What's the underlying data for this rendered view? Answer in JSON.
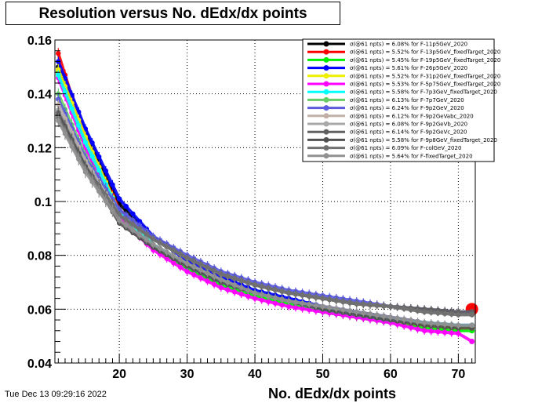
{
  "title": "Resolution versus No. dEdx/dx points",
  "footer_date": "Tue Dec 13 09:29:16 2022",
  "chart_data": {
    "type": "scatter",
    "title": "Resolution versus No. dEdx/dx points",
    "xlabel": "No. dEdx/dx points",
    "ylabel": "",
    "xlim": [
      10.5,
      72.5
    ],
    "ylim": [
      0.04,
      0.16
    ],
    "xticks": [
      20,
      30,
      40,
      50,
      60,
      70
    ],
    "yticks": [
      0.04,
      0.06,
      0.08,
      0.1,
      0.12,
      0.14,
      0.16
    ],
    "ytick_labels": [
      "0.04",
      "0.06",
      "0.08",
      "0.1",
      "0.12",
      "0.14",
      "0.16"
    ],
    "grid": true,
    "legend_position": "top-right",
    "x": [
      11,
      15,
      20,
      25,
      30,
      35,
      40,
      45,
      50,
      55,
      60,
      65,
      70,
      72
    ],
    "series": [
      {
        "name": "σ(@61 npts) =  6.08% for F-11p5GeV_2020",
        "color": "#000000",
        "values": [
          0.15,
          0.126,
          0.099,
          0.087,
          0.079,
          0.073,
          0.069,
          0.066,
          0.064,
          0.062,
          0.061,
          0.059,
          0.058,
          0.058
        ]
      },
      {
        "name": "σ(@61 npts) =  5.52% for F-13p5GeV_fixedTarget_2020",
        "color": "#ff0000",
        "values": [
          0.155,
          0.123,
          0.097,
          0.084,
          0.076,
          0.07,
          0.066,
          0.063,
          0.06,
          0.058,
          0.056,
          0.054,
          0.053,
          0.06
        ]
      },
      {
        "name": "σ(@61 npts) =  5.45% for F-19p5GeV_fixedTarget_2020",
        "color": "#00ee00",
        "values": [
          0.148,
          0.121,
          0.095,
          0.083,
          0.075,
          0.069,
          0.065,
          0.062,
          0.059,
          0.057,
          0.055,
          0.053,
          0.052,
          0.052
        ]
      },
      {
        "name": "σ(@61 npts) =  5.61% for F-26p5GeV_2020",
        "color": "#0000ff",
        "values": [
          0.152,
          0.127,
          0.101,
          0.087,
          0.078,
          0.072,
          0.067,
          0.064,
          0.061,
          0.059,
          0.057,
          0.055,
          0.054,
          0.054
        ]
      },
      {
        "name": "σ(@61 npts) =  5.52% for F-31p2GeV_fixedTarget_2020",
        "color": "#eeee00",
        "values": [
          0.149,
          0.124,
          0.096,
          0.084,
          0.076,
          0.07,
          0.066,
          0.063,
          0.06,
          0.058,
          0.056,
          0.054,
          0.053,
          0.053
        ]
      },
      {
        "name": "σ(@61 npts) =  5.53% for F-5p75GeV_fixedTarget_2020",
        "color": "#ff00ff",
        "values": [
          0.146,
          0.12,
          0.094,
          0.082,
          0.074,
          0.068,
          0.064,
          0.061,
          0.059,
          0.057,
          0.055,
          0.052,
          0.051,
          0.048
        ]
      },
      {
        "name": "σ(@61 npts) =  5.58% for F-7p3GeV_fixedTarget_2020",
        "color": "#00ffff",
        "values": [
          0.147,
          0.122,
          0.096,
          0.084,
          0.076,
          0.07,
          0.066,
          0.063,
          0.06,
          0.058,
          0.056,
          0.055,
          0.054,
          0.054
        ]
      },
      {
        "name": "σ(@61 npts) =  6.13% for F-7p7GeV_2020",
        "color": "#66cc66",
        "values": [
          0.14,
          0.117,
          0.095,
          0.086,
          0.079,
          0.073,
          0.069,
          0.066,
          0.064,
          0.062,
          0.061,
          0.059,
          0.058,
          0.058
        ]
      },
      {
        "name": "σ(@61 npts) =  6.24% for F-9p2GeV_2020",
        "color": "#5a5adc",
        "values": [
          0.138,
          0.116,
          0.097,
          0.087,
          0.08,
          0.074,
          0.07,
          0.067,
          0.065,
          0.063,
          0.061,
          0.06,
          0.059,
          0.059
        ]
      },
      {
        "name": "σ(@61 npts) =  6.12% for F-9p2GeVabc_2020",
        "color": "#c0b0a8",
        "values": [
          0.136,
          0.115,
          0.095,
          0.086,
          0.079,
          0.073,
          0.069,
          0.066,
          0.064,
          0.062,
          0.061,
          0.059,
          0.058,
          0.058
        ]
      },
      {
        "name": "σ(@61 npts) =  6.08% for F-9p2GeVb_2020",
        "color": "#a8a8a8",
        "values": [
          0.134,
          0.114,
          0.095,
          0.086,
          0.079,
          0.073,
          0.069,
          0.066,
          0.064,
          0.062,
          0.061,
          0.059,
          0.058,
          0.058
        ]
      },
      {
        "name": "σ(@61 npts) =  6.14% for F-9p2GeVc_2020",
        "color": "#606060",
        "values": [
          0.133,
          0.113,
          0.095,
          0.086,
          0.079,
          0.073,
          0.069,
          0.066,
          0.064,
          0.062,
          0.061,
          0.06,
          0.059,
          0.059
        ]
      },
      {
        "name": "σ(@61 npts) =  5.58% for F-9p8GeV_fixedTarget_2020",
        "color": "#505050",
        "values": [
          0.132,
          0.113,
          0.092,
          0.083,
          0.076,
          0.07,
          0.066,
          0.063,
          0.06,
          0.058,
          0.056,
          0.054,
          0.053,
          0.053
        ]
      },
      {
        "name": "σ(@61 npts) =  6.09% for F-colGeV_2020",
        "color": "#707070",
        "values": [
          0.131,
          0.112,
          0.095,
          0.086,
          0.079,
          0.073,
          0.069,
          0.066,
          0.064,
          0.062,
          0.061,
          0.059,
          0.058,
          0.058
        ]
      },
      {
        "name": "σ(@61 npts) =  5.64% for F-fixedTarget_2020",
        "color": "#909090",
        "values": [
          0.13,
          0.111,
          0.093,
          0.084,
          0.077,
          0.071,
          0.066,
          0.063,
          0.061,
          0.059,
          0.057,
          0.055,
          0.054,
          0.054
        ]
      }
    ]
  }
}
